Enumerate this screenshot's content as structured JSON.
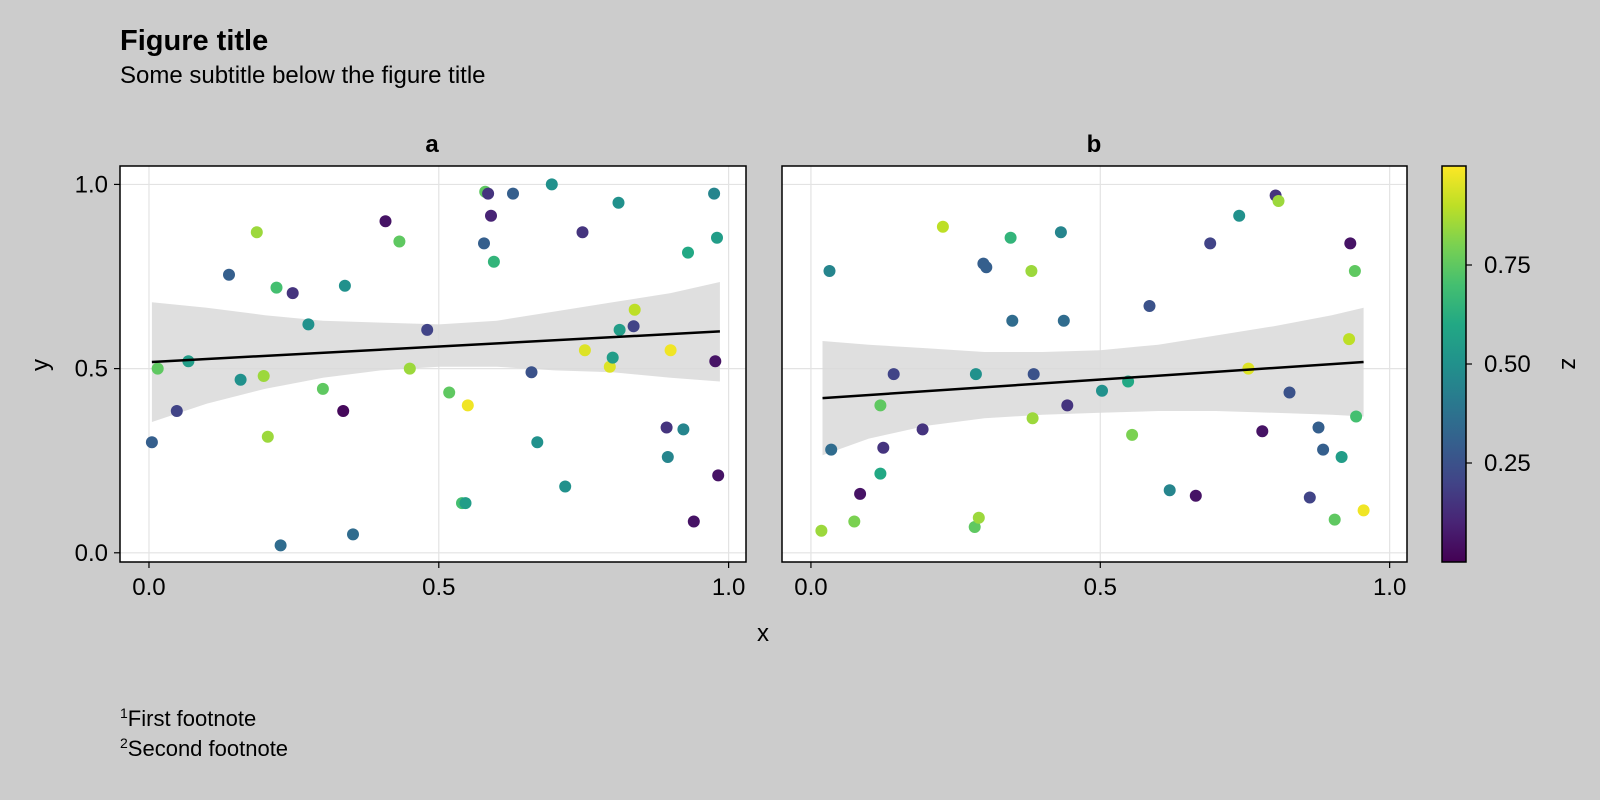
{
  "figure": {
    "title": "Figure title",
    "subtitle": "Some subtitle below the figure title",
    "footnotes": [
      {
        "mark": "1",
        "text": "First footnote"
      },
      {
        "mark": "2",
        "text": "Second footnote"
      }
    ]
  },
  "colors": {
    "background": "#cccccc",
    "panel_background": "#ffffff",
    "band": "#d9d9d9",
    "fit_line": "#000000",
    "grid": "#e3e3e3"
  },
  "chart_data": {
    "type": "scatter",
    "xlabel": "x",
    "ylabel": "y",
    "xlim": [
      -0.05,
      1.03
    ],
    "ylim": [
      -0.025,
      1.05
    ],
    "xticks": [
      0.0,
      0.5,
      1.0
    ],
    "xtick_labels": [
      "0.0",
      "0.5",
      "1.0"
    ],
    "yticks": [
      0.0,
      0.5,
      1.0
    ],
    "ytick_labels": [
      "0.0",
      "0.5",
      "1.0"
    ],
    "grid": true,
    "colorbar": {
      "label": "z",
      "colormap": "viridis",
      "range": [
        0.0,
        1.0
      ],
      "ticks": [
        0.25,
        0.5,
        0.75
      ],
      "tick_labels": [
        "0.25",
        "0.50",
        "0.75"
      ]
    },
    "panels": [
      {
        "title": "a",
        "fit": {
          "x": [
            0.005,
            0.985
          ],
          "y": [
            0.518,
            0.601
          ]
        },
        "band": {
          "x": [
            0.005,
            0.1,
            0.2,
            0.3,
            0.4,
            0.5,
            0.6,
            0.7,
            0.8,
            0.9,
            0.985
          ],
          "lower": [
            0.355,
            0.405,
            0.445,
            0.475,
            0.495,
            0.505,
            0.505,
            0.495,
            0.49,
            0.475,
            0.465
          ],
          "upper": [
            0.68,
            0.665,
            0.645,
            0.63,
            0.625,
            0.62,
            0.63,
            0.655,
            0.68,
            0.705,
            0.735
          ]
        },
        "points": [
          [
            0.005,
            0.3,
            0.3
          ],
          [
            0.015,
            0.5,
            0.75
          ],
          [
            0.048,
            0.385,
            0.2
          ],
          [
            0.068,
            0.52,
            0.55
          ],
          [
            0.138,
            0.755,
            0.3
          ],
          [
            0.158,
            0.47,
            0.5
          ],
          [
            0.186,
            0.87,
            0.85
          ],
          [
            0.198,
            0.48,
            0.85
          ],
          [
            0.205,
            0.315,
            0.85
          ],
          [
            0.22,
            0.72,
            0.7
          ],
          [
            0.227,
            0.02,
            0.35
          ],
          [
            0.248,
            0.705,
            0.15
          ],
          [
            0.275,
            0.62,
            0.5
          ],
          [
            0.3,
            0.445,
            0.75
          ],
          [
            0.335,
            0.385,
            0.02
          ],
          [
            0.338,
            0.725,
            0.5
          ],
          [
            0.352,
            0.05,
            0.35
          ],
          [
            0.408,
            0.9,
            0.05
          ],
          [
            0.432,
            0.845,
            0.75
          ],
          [
            0.45,
            0.5,
            0.85
          ],
          [
            0.48,
            0.605,
            0.2
          ],
          [
            0.518,
            0.435,
            0.75
          ],
          [
            0.54,
            0.135,
            0.7
          ],
          [
            0.546,
            0.135,
            0.55
          ],
          [
            0.55,
            0.4,
            0.98
          ],
          [
            0.578,
            0.84,
            0.3
          ],
          [
            0.58,
            0.98,
            0.75
          ],
          [
            0.585,
            0.975,
            0.15
          ],
          [
            0.59,
            0.915,
            0.1
          ],
          [
            0.595,
            0.79,
            0.65
          ],
          [
            0.628,
            0.975,
            0.3
          ],
          [
            0.66,
            0.49,
            0.25
          ],
          [
            0.67,
            0.3,
            0.5
          ],
          [
            0.695,
            1.0,
            0.5
          ],
          [
            0.718,
            0.18,
            0.5
          ],
          [
            0.748,
            0.87,
            0.15
          ],
          [
            0.752,
            0.55,
            0.95
          ],
          [
            0.795,
            0.505,
            0.95
          ],
          [
            0.8,
            0.53,
            0.55
          ],
          [
            0.81,
            0.95,
            0.5
          ],
          [
            0.812,
            0.605,
            0.55
          ],
          [
            0.836,
            0.615,
            0.2
          ],
          [
            0.838,
            0.66,
            0.9
          ],
          [
            0.893,
            0.34,
            0.15
          ],
          [
            0.895,
            0.26,
            0.45
          ],
          [
            0.9,
            0.55,
            0.98
          ],
          [
            0.922,
            0.335,
            0.45
          ],
          [
            0.93,
            0.815,
            0.6
          ],
          [
            0.94,
            0.085,
            0.05
          ],
          [
            0.975,
            0.975,
            0.45
          ],
          [
            0.977,
            0.52,
            0.05
          ],
          [
            0.98,
            0.855,
            0.55
          ],
          [
            0.982,
            0.21,
            0.05
          ]
        ]
      },
      {
        "title": "b",
        "fit": {
          "x": [
            0.02,
            0.955
          ],
          "y": [
            0.42,
            0.518
          ]
        },
        "band": {
          "x": [
            0.02,
            0.1,
            0.2,
            0.3,
            0.4,
            0.5,
            0.6,
            0.7,
            0.8,
            0.9,
            0.955
          ],
          "lower": [
            0.265,
            0.31,
            0.345,
            0.365,
            0.375,
            0.38,
            0.385,
            0.385,
            0.38,
            0.375,
            0.37
          ],
          "upper": [
            0.575,
            0.565,
            0.555,
            0.545,
            0.545,
            0.55,
            0.565,
            0.59,
            0.615,
            0.645,
            0.665
          ]
        },
        "points": [
          [
            0.018,
            0.06,
            0.85
          ],
          [
            0.032,
            0.765,
            0.45
          ],
          [
            0.035,
            0.28,
            0.35
          ],
          [
            0.075,
            0.085,
            0.8
          ],
          [
            0.085,
            0.16,
            0.05
          ],
          [
            0.12,
            0.4,
            0.75
          ],
          [
            0.12,
            0.215,
            0.6
          ],
          [
            0.125,
            0.285,
            0.15
          ],
          [
            0.143,
            0.485,
            0.2
          ],
          [
            0.193,
            0.335,
            0.15
          ],
          [
            0.228,
            0.885,
            0.9
          ],
          [
            0.283,
            0.07,
            0.75
          ],
          [
            0.285,
            0.485,
            0.5
          ],
          [
            0.29,
            0.095,
            0.85
          ],
          [
            0.298,
            0.785,
            0.3
          ],
          [
            0.303,
            0.775,
            0.3
          ],
          [
            0.345,
            0.855,
            0.65
          ],
          [
            0.348,
            0.63,
            0.35
          ],
          [
            0.381,
            0.765,
            0.85
          ],
          [
            0.383,
            0.365,
            0.85
          ],
          [
            0.385,
            0.485,
            0.25
          ],
          [
            0.432,
            0.87,
            0.45
          ],
          [
            0.437,
            0.63,
            0.35
          ],
          [
            0.443,
            0.4,
            0.15
          ],
          [
            0.503,
            0.44,
            0.5
          ],
          [
            0.548,
            0.465,
            0.6
          ],
          [
            0.555,
            0.32,
            0.8
          ],
          [
            0.585,
            0.67,
            0.25
          ],
          [
            0.62,
            0.17,
            0.45
          ],
          [
            0.665,
            0.155,
            0.05
          ],
          [
            0.69,
            0.84,
            0.2
          ],
          [
            0.74,
            0.915,
            0.5
          ],
          [
            0.756,
            0.5,
            0.95
          ],
          [
            0.78,
            0.33,
            0.05
          ],
          [
            0.803,
            0.97,
            0.15
          ],
          [
            0.808,
            0.955,
            0.85
          ],
          [
            0.827,
            0.435,
            0.25
          ],
          [
            0.862,
            0.15,
            0.2
          ],
          [
            0.877,
            0.34,
            0.3
          ],
          [
            0.885,
            0.28,
            0.3
          ],
          [
            0.905,
            0.09,
            0.75
          ],
          [
            0.917,
            0.26,
            0.55
          ],
          [
            0.93,
            0.58,
            0.9
          ],
          [
            0.932,
            0.84,
            0.05
          ],
          [
            0.94,
            0.765,
            0.75
          ],
          [
            0.942,
            0.37,
            0.7
          ],
          [
            0.955,
            0.115,
            0.98
          ]
        ]
      }
    ]
  }
}
